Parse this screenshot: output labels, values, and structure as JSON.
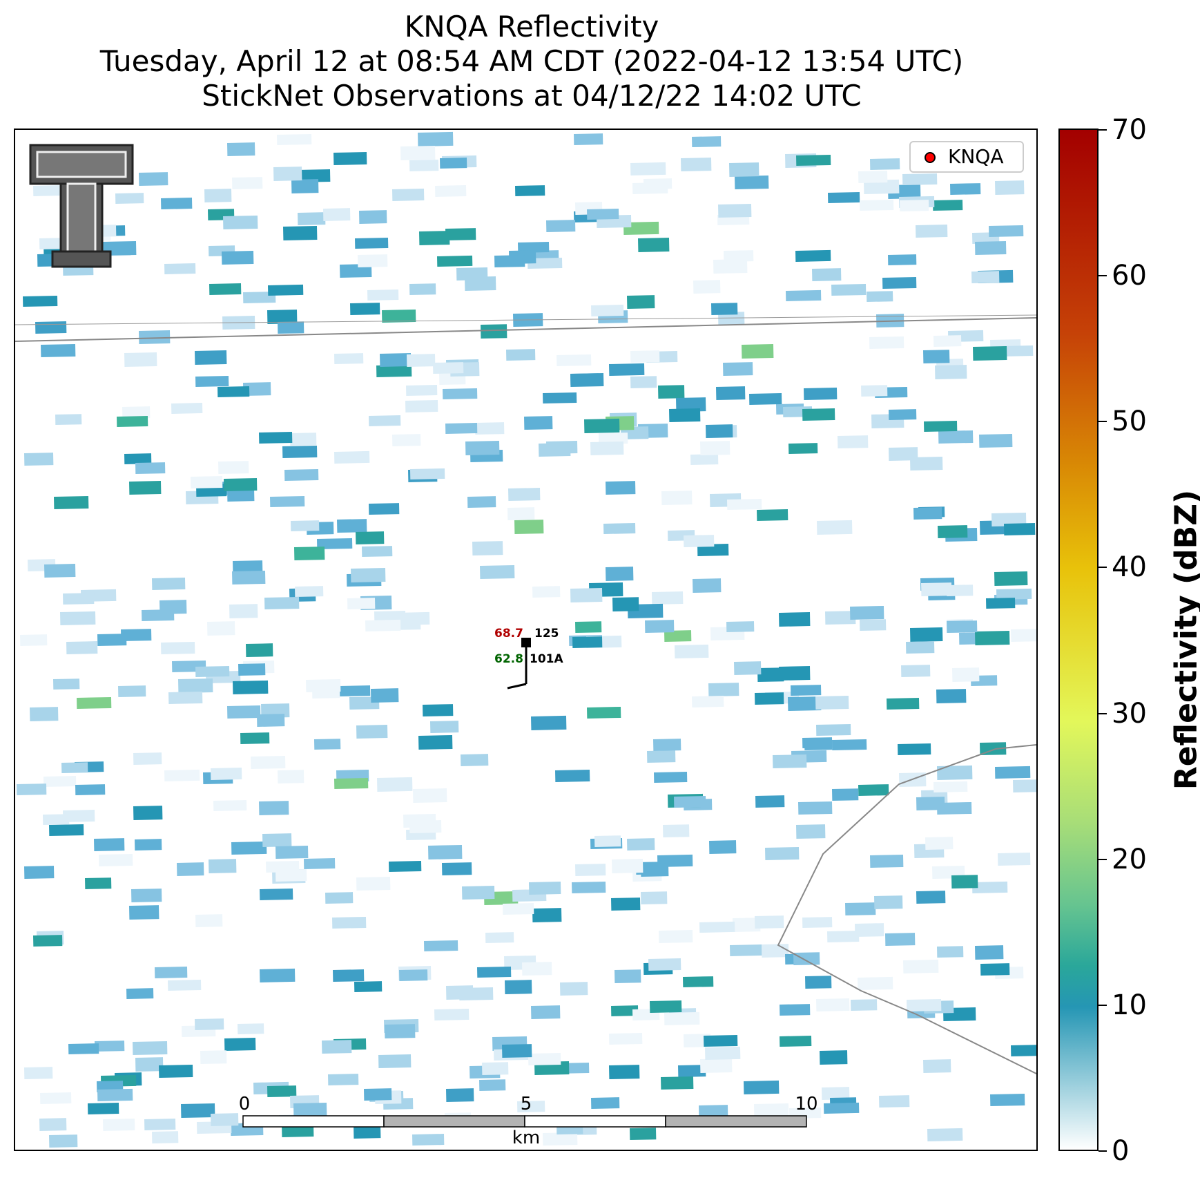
{
  "title": {
    "line1": "KNQA Reflectivity",
    "line2": "Tuesday, April 12 at 08:54 AM CDT (2022-04-12 13:54 UTC)",
    "line3": "StickNet Observations at 04/12/22 14:02 UTC"
  },
  "legend": {
    "label": "KNQA",
    "marker_color": "#ff0000"
  },
  "colorbar": {
    "label": "Reflectivity (dBZ)",
    "ticks": [
      "0",
      "10",
      "20",
      "30",
      "40",
      "50",
      "60",
      "70"
    ],
    "range": [
      0,
      70
    ]
  },
  "station": {
    "temperature": "68.7",
    "dewpoint": "62.8",
    "wind_value": "125",
    "station_id": "101A",
    "temperature_color": "#b00000",
    "dewpoint_color": "#006400"
  },
  "scalebar": {
    "tick_labels": [
      "0",
      "5",
      "10"
    ],
    "unit": "km"
  },
  "logo": {
    "icon": "double-t-logo-icon"
  },
  "colors": {
    "boundary_lines": "#888888",
    "scalebar_fill": "#b3b3b3"
  }
}
